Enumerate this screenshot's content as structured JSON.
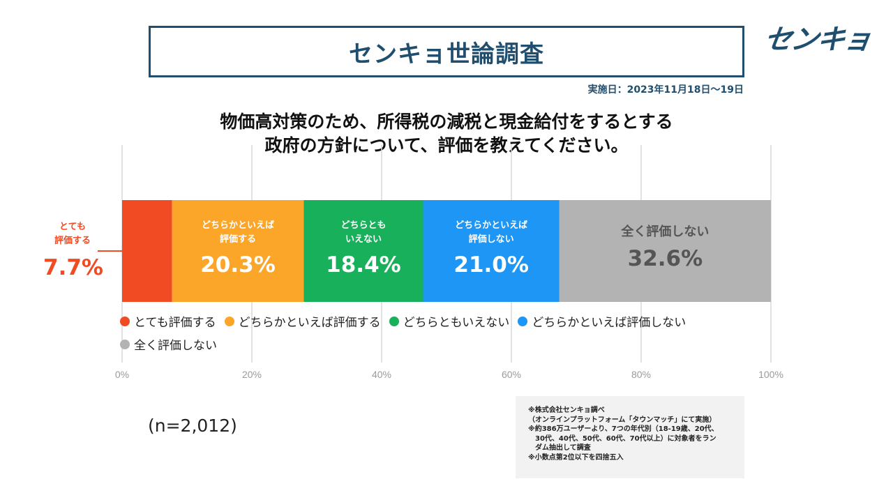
{
  "header": {
    "title": "センキョ世論調査",
    "logo": "センキョ",
    "date": "実施日：2023年11月18日～19日"
  },
  "question": {
    "line1": "物価高対策のため、所得税の減税と現金給付をするとする",
    "line2": "政府の方針について、評価を教えてください。"
  },
  "colors": {
    "very_positive": "#f04b23",
    "somewhat_positive": "#fba629",
    "neutral": "#18b05a",
    "somewhat_negative": "#1e96f5",
    "negative": "#b3b3b3",
    "negative_text": "#555555",
    "brand": "#1f4e6e",
    "grid": "#d9d9d9"
  },
  "chart_data": {
    "type": "bar",
    "orientation": "horizontal-stacked-100",
    "categories": [
      "とても評価する",
      "どちらかといえば評価する",
      "どちらともいえない",
      "どちらかといえば評価しない",
      "全く評価しない"
    ],
    "series": [
      {
        "name": "とても評価する",
        "label_line1": "とても",
        "label_line2": "評価する",
        "value": 7.7,
        "display": "7.7%"
      },
      {
        "name": "どちらかといえば評価する",
        "label_line1": "どちらかといえば",
        "label_line2": "評価する",
        "value": 20.3,
        "display": "20.3%"
      },
      {
        "name": "どちらともいえない",
        "label_line1": "どちらとも",
        "label_line2": "いえない",
        "value": 18.4,
        "display": "18.4%"
      },
      {
        "name": "どちらかといえば評価しない",
        "label_line1": "どちらかといえば",
        "label_line2": "評価しない",
        "value": 21.0,
        "display": "21.0%"
      },
      {
        "name": "全く評価しない",
        "label_line1": "全く評価しない",
        "label_line2": "",
        "value": 32.6,
        "display": "32.6%"
      }
    ],
    "xlim": [
      0,
      100
    ],
    "xticks": [
      "0%",
      "20%",
      "40%",
      "60%",
      "80%",
      "100%"
    ],
    "grid": true,
    "legend": "bottom"
  },
  "sample": "(n=2,012)",
  "notes": [
    "※株式会社センキョ調べ",
    "（オンラインプラットフォーム「タウンマッチ」にて実施）",
    "※約386万ユーザーより、7つの年代別（18-19歳、20代、",
    "　30代、40代、50代、60代、70代以上）に対象者をラン",
    "　ダム抽出して調査",
    "※小数点第2位以下を四捨五入"
  ]
}
